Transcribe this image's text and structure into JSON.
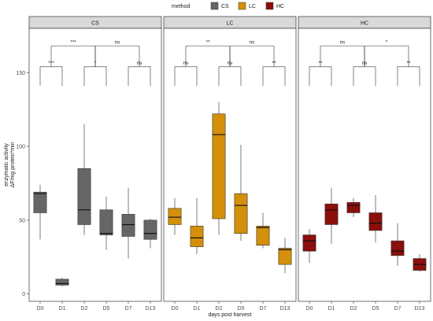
{
  "chart_data": {
    "type": "boxplot",
    "xlabel": "days post harvest",
    "ylabel_lines": [
      "enzymatic activity",
      "ΔF/mg protein*min"
    ],
    "yticks": [
      0,
      50,
      100,
      150
    ],
    "ylim": [
      -5,
      180
    ],
    "categories": [
      "D0",
      "D1",
      "D2",
      "D5",
      "D7",
      "D13"
    ],
    "legend": {
      "title": "method",
      "position": "top",
      "entries": [
        {
          "label": "CS",
          "color": "#666666"
        },
        {
          "label": "LC",
          "color": "#d4900a"
        },
        {
          "label": "HC",
          "color": "#8b0f0a"
        }
      ]
    },
    "panels": [
      {
        "strip": "CS",
        "color": "#666666",
        "boxes": [
          {
            "day": "D0",
            "min": 37,
            "q1": 55,
            "median": 68,
            "q3": 69,
            "max": 74
          },
          {
            "day": "D1",
            "min": 5,
            "q1": 6,
            "median": 7,
            "q3": 10,
            "max": 11
          },
          {
            "day": "D2",
            "min": 40,
            "q1": 47,
            "median": 57,
            "q3": 85,
            "max": 115
          },
          {
            "day": "D5",
            "min": 30,
            "q1": 40,
            "median": 41,
            "q3": 57,
            "max": 66
          },
          {
            "day": "D7",
            "min": 24,
            "q1": 39,
            "median": 47,
            "q3": 54,
            "max": 72
          },
          {
            "day": "D13",
            "min": 31,
            "q1": 37,
            "median": 41,
            "q3": 50,
            "max": 51
          }
        ],
        "brackets": [
          {
            "from": "D0",
            "to": "D1",
            "label": "***",
            "level": 1
          },
          {
            "from": "D2",
            "to": "D5",
            "label": "*",
            "level": 1
          },
          {
            "from": "D7",
            "to": "D13",
            "label": "ns",
            "level": 1
          },
          {
            "from": "D0-D1",
            "to": "D2-D5",
            "label": "***",
            "level": 2
          },
          {
            "from": "D2-D5",
            "to": "D7-D13",
            "label": "ns",
            "level": 2
          }
        ]
      },
      {
        "strip": "LC",
        "color": "#d4900a",
        "boxes": [
          {
            "day": "D0",
            "min": 40,
            "q1": 47,
            "median": 52,
            "q3": 58,
            "max": 65
          },
          {
            "day": "D1",
            "min": 27,
            "q1": 32,
            "median": 38,
            "q3": 46,
            "max": 65
          },
          {
            "day": "D2",
            "min": 40,
            "q1": 51,
            "median": 108,
            "q3": 122,
            "max": 130
          },
          {
            "day": "D5",
            "min": 36,
            "q1": 41,
            "median": 60,
            "q3": 68,
            "max": 101
          },
          {
            "day": "D7",
            "min": 31,
            "q1": 33,
            "median": 45,
            "q3": 46,
            "max": 55
          },
          {
            "day": "D13",
            "min": 14,
            "q1": 20,
            "median": 30,
            "q3": 31,
            "max": 38
          }
        ],
        "brackets": [
          {
            "from": "D0",
            "to": "D1",
            "label": "ns",
            "level": 1
          },
          {
            "from": "D2",
            "to": "D5",
            "label": "ns",
            "level": 1
          },
          {
            "from": "D7",
            "to": "D13",
            "label": "**",
            "level": 1
          },
          {
            "from": "D0-D1",
            "to": "D2-D5",
            "label": "**",
            "level": 2
          },
          {
            "from": "D2-D5",
            "to": "D7-D13",
            "label": "ns",
            "level": 2
          }
        ]
      },
      {
        "strip": "HC",
        "color": "#8b0f0a",
        "boxes": [
          {
            "day": "D0",
            "min": 21,
            "q1": 29,
            "median": 36,
            "q3": 40,
            "max": 44
          },
          {
            "day": "D1",
            "min": 34,
            "q1": 47,
            "median": 57,
            "q3": 61,
            "max": 72
          },
          {
            "day": "D2",
            "min": 52,
            "q1": 55,
            "median": 60,
            "q3": 62,
            "max": 65
          },
          {
            "day": "D5",
            "min": 35,
            "q1": 43,
            "median": 48,
            "q3": 55,
            "max": 67
          },
          {
            "day": "D7",
            "min": 19,
            "q1": 26,
            "median": 29,
            "q3": 36,
            "max": 48
          },
          {
            "day": "D13",
            "min": 15,
            "q1": 16,
            "median": 20,
            "q3": 24,
            "max": 27
          }
        ],
        "brackets": [
          {
            "from": "D0",
            "to": "D1",
            "label": "**",
            "level": 1
          },
          {
            "from": "D2",
            "to": "D5",
            "label": "ns",
            "level": 1
          },
          {
            "from": "D7",
            "to": "D13",
            "label": "**",
            "level": 1
          },
          {
            "from": "D0-D1",
            "to": "D2-D5",
            "label": "ns",
            "level": 2
          },
          {
            "from": "D2-D5",
            "to": "D7-D13",
            "label": "*",
            "level": 2
          }
        ]
      }
    ]
  }
}
